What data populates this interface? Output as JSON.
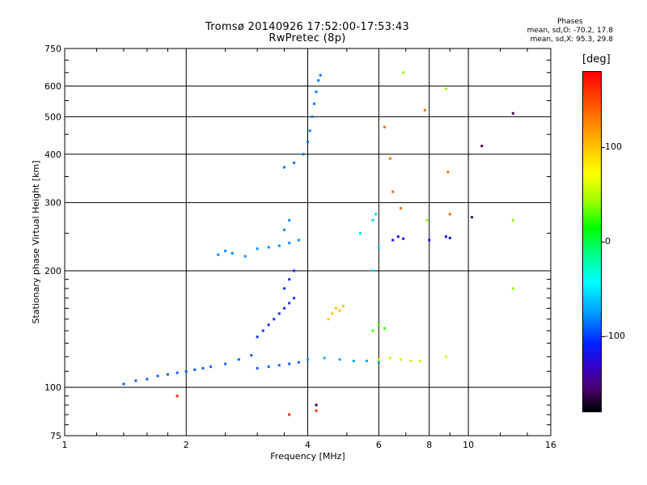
{
  "header": {
    "line1": "Tromsø 20140926 17:52:00-17:53:43",
    "line2": "RwPretec (8p)"
  },
  "phases": {
    "title": "Phases",
    "o_mode": "mean, sd,O: -70.2, 17.8",
    "x_mode": "mean, sd,X:  95.3, 29.8"
  },
  "colorbar": {
    "unit": "[deg]",
    "ticks": [
      {
        "value": 100,
        "label": "100"
      },
      {
        "value": 0,
        "label": "0"
      },
      {
        "value": -100,
        "label": "-100"
      }
    ],
    "range": [
      -180,
      180
    ]
  },
  "chart_data": {
    "type": "scatter",
    "title": "Tromsø 20140926 17:52:00-17:53:43",
    "subtitle": "RwPretec (8p)",
    "xlabel": "Frequency [MHz]",
    "ylabel": "Stationary phase Virtual Height [km]",
    "xscale": "log",
    "yscale": "log",
    "xlim": [
      1,
      16
    ],
    "ylim": [
      75,
      750
    ],
    "grid": true,
    "x_ticks": [
      1,
      2,
      4,
      6,
      8,
      10,
      16
    ],
    "x_tick_labels": [
      "1",
      "2",
      "4",
      "6",
      "8",
      "10",
      "16"
    ],
    "y_ticks": [
      75,
      100,
      200,
      300,
      400,
      500,
      600,
      750
    ],
    "y_tick_labels": [
      "75",
      "100",
      "200",
      "300",
      "400",
      "500",
      "600",
      "750"
    ],
    "colorbar_label": "[deg]",
    "series": [
      {
        "phase": -85,
        "points": [
          [
            1.4,
            102
          ],
          [
            1.5,
            104
          ],
          [
            1.6,
            105
          ],
          [
            1.7,
            107
          ],
          [
            1.8,
            108
          ],
          [
            1.9,
            109
          ],
          [
            2.0,
            110
          ],
          [
            2.1,
            111
          ],
          [
            2.2,
            112
          ],
          [
            2.3,
            113
          ],
          [
            2.5,
            115
          ],
          [
            2.7,
            118
          ],
          [
            2.9,
            121
          ],
          [
            3.0,
            112
          ],
          [
            3.2,
            113
          ],
          [
            3.4,
            114
          ],
          [
            3.6,
            115
          ],
          [
            3.8,
            116
          ]
        ]
      },
      {
        "phase": -100,
        "points": [
          [
            3.0,
            135
          ],
          [
            3.1,
            140
          ],
          [
            3.2,
            145
          ],
          [
            3.3,
            150
          ],
          [
            3.4,
            155
          ],
          [
            3.5,
            160
          ],
          [
            3.6,
            165
          ],
          [
            3.7,
            170
          ],
          [
            3.5,
            180
          ],
          [
            3.6,
            190
          ],
          [
            3.7,
            200
          ]
        ]
      },
      {
        "phase": -70,
        "points": [
          [
            2.4,
            220
          ],
          [
            2.5,
            225
          ],
          [
            2.6,
            222
          ],
          [
            2.8,
            218
          ],
          [
            3.0,
            228
          ],
          [
            3.2,
            230
          ],
          [
            3.4,
            232
          ],
          [
            3.6,
            236
          ],
          [
            3.8,
            240
          ],
          [
            3.5,
            255
          ],
          [
            3.6,
            270
          ]
        ]
      },
      {
        "phase": -75,
        "points": [
          [
            3.5,
            370
          ],
          [
            3.7,
            380
          ],
          [
            3.9,
            400
          ],
          [
            4.0,
            430
          ],
          [
            4.05,
            460
          ],
          [
            4.1,
            500
          ],
          [
            4.15,
            540
          ],
          [
            4.2,
            580
          ],
          [
            4.25,
            620
          ],
          [
            4.3,
            640
          ]
        ]
      },
      {
        "phase": -60,
        "points": [
          [
            4.0,
            118
          ],
          [
            4.4,
            119
          ],
          [
            4.8,
            118
          ],
          [
            5.2,
            117
          ],
          [
            5.6,
            117
          ],
          [
            6.0,
            116
          ]
        ]
      },
      {
        "phase": 120,
        "points": [
          [
            4.5,
            150
          ],
          [
            4.6,
            155
          ],
          [
            4.7,
            160
          ],
          [
            4.8,
            158
          ],
          [
            4.9,
            162
          ]
        ]
      },
      {
        "phase": 90,
        "points": [
          [
            6.0,
            118
          ],
          [
            6.4,
            119
          ],
          [
            6.8,
            118
          ],
          [
            7.2,
            117
          ],
          [
            7.6,
            117
          ],
          [
            8.8,
            120
          ]
        ]
      },
      {
        "phase": 40,
        "points": [
          [
            5.8,
            140
          ],
          [
            6.0,
            145
          ],
          [
            6.2,
            142
          ]
        ]
      },
      {
        "phase": -110,
        "points": [
          [
            6.5,
            240
          ],
          [
            6.7,
            245
          ],
          [
            6.9,
            242
          ],
          [
            8.0,
            240
          ],
          [
            8.8,
            245
          ],
          [
            9.0,
            243
          ]
        ]
      },
      {
        "phase": 150,
        "points": [
          [
            6.2,
            470
          ],
          [
            6.4,
            390
          ],
          [
            6.8,
            290
          ],
          [
            6.5,
            320
          ],
          [
            7.8,
            520
          ],
          [
            8.9,
            360
          ],
          [
            9.0,
            280
          ]
        ]
      },
      {
        "phase": 60,
        "points": [
          [
            6.9,
            650
          ],
          [
            7.9,
            270
          ],
          [
            8.8,
            590
          ],
          [
            12.9,
            270
          ],
          [
            12.9,
            180
          ]
        ]
      },
      {
        "phase": -40,
        "points": [
          [
            5.4,
            250
          ],
          [
            5.8,
            270
          ],
          [
            5.9,
            280
          ],
          [
            6.0,
            230
          ],
          [
            5.8,
            200
          ]
        ]
      },
      {
        "phase": -150,
        "points": [
          [
            4.2,
            90
          ],
          [
            10.8,
            420
          ],
          [
            10.2,
            275
          ],
          [
            12.9,
            510
          ]
        ]
      },
      {
        "phase": 170,
        "points": [
          [
            1.9,
            95
          ],
          [
            3.6,
            85
          ],
          [
            4.2,
            87
          ]
        ]
      }
    ]
  }
}
